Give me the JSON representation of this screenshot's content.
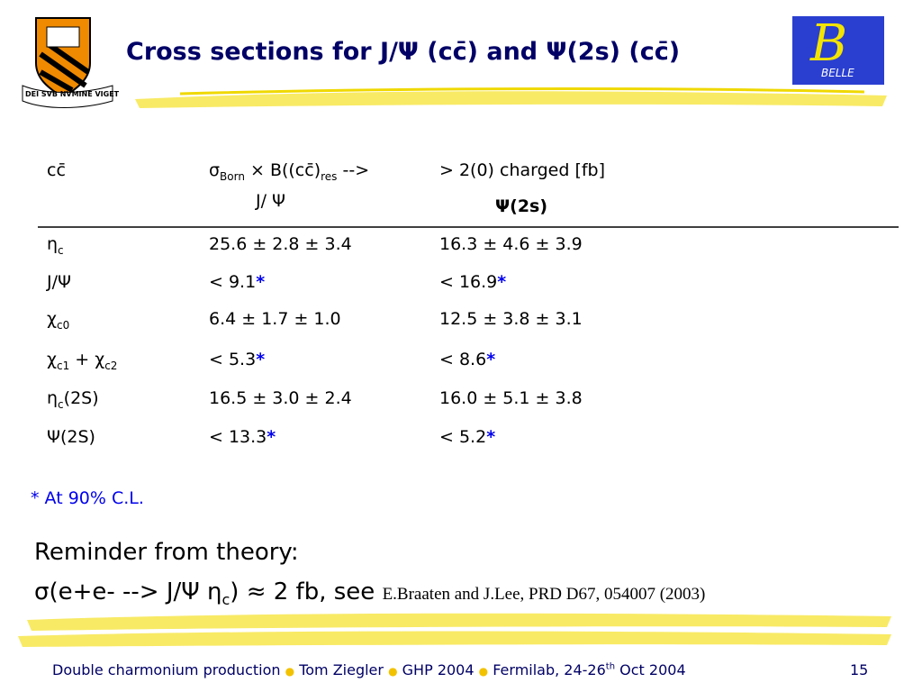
{
  "header": {
    "title": "Cross sections for J/Ψ (cc̄) and Ψ(2s) (cc̄)",
    "left_logo_text": "DEI SVB NVMINE VIGET",
    "right_logo_letter": "B",
    "right_logo_text": "BELLE"
  },
  "table": {
    "header": [
      [
        "cc̄"
      ],
      [
        "σ",
        "Born",
        " × B((cc̄)",
        "res",
        " -->",
        "J/ Ψ"
      ],
      [
        "> 2(0) charged [fb]",
        "Ψ(2s)"
      ]
    ],
    "rows": [
      [
        [
          "η",
          "c"
        ],
        [
          "25.6 ± 2.8 ± 3.4"
        ],
        [
          "16.3 ± 4.6 ± 3.9"
        ]
      ],
      [
        [
          "J/Ψ"
        ],
        [
          "< 9.1",
          "*"
        ],
        [
          "< 16.9",
          "*"
        ]
      ],
      [
        [
          "χ",
          "c0"
        ],
        [
          "6.4 ± 1.7 ± 1.0"
        ],
        [
          "12.5 ± 3.8 ± 3.1"
        ]
      ],
      [
        [
          "χ",
          "c1",
          " + χ",
          "c2"
        ],
        [
          "< 5.3",
          "*"
        ],
        [
          "< 8.6",
          "*"
        ]
      ],
      [
        [
          "η",
          "c",
          "(2S)"
        ],
        [
          "16.5 ± 3.0 ± 2.4"
        ],
        [
          "16.0 ± 5.1 ± 3.8"
        ]
      ],
      [
        [
          "Ψ(2S)"
        ],
        [
          "< 13.3",
          "*"
        ],
        [
          "< 5.2",
          "*"
        ]
      ]
    ]
  },
  "footnote": "* At 90% C.L.",
  "reminder": {
    "heading": "Reminder from theory:",
    "line": [
      "σ(e+e- --> J/Ψ η",
      "c",
      ") ≈ 2 fb, see ",
      "E.Braaten and J.Lee, PRD D67, 054007 (2003)"
    ]
  },
  "footer": {
    "talk": "Double charmonium production",
    "author": "Tom Ziegler",
    "conference": "GHP 2004",
    "place": "Fermilab, 24-26",
    "place_sup": "th",
    "place_end": " Oct 2004",
    "page": "15"
  }
}
